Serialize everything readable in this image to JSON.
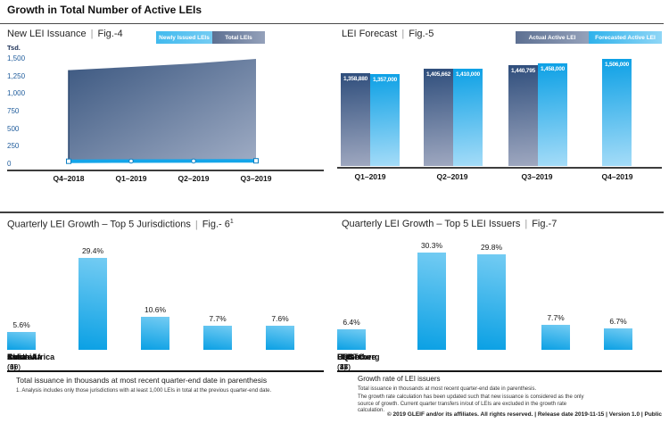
{
  "page": {
    "title": "Growth in Total Number of Active LEIs",
    "sep": "|",
    "footer": "© 2019 GLEIF and/or its affiliates. All rights reserved.  |  Release date 2019-11-15  |  Version 1.0  |  Public"
  },
  "colors": {
    "accent_blue": "#0ca0e4",
    "light_blue": "#5bc5f2",
    "slate_blue": "#3d5983",
    "slate_light": "#9ba8c2",
    "axis_label_blue": "#1f5c9c"
  },
  "fig4": {
    "title": "New LEI Issuance",
    "fig": "Fig.-4",
    "unit": "Tsd.",
    "legend": [
      "Newly Issued LEIs",
      "Total LEIs"
    ],
    "yticks": [
      "1,500",
      "1,250",
      "1,000",
      "750",
      "500",
      "250",
      "0"
    ],
    "xticks": [
      "Q4–2018",
      "Q1–2019",
      "Q2–2019",
      "Q3–2019"
    ]
  },
  "fig5": {
    "title": "LEI Forecast",
    "fig": "Fig.-5",
    "legend": [
      "Actual Active LEI",
      "Forecasted Active LEI"
    ],
    "xticks": [
      "Q1–2019",
      "Q2–2019",
      "Q3–2019",
      "Q4–2019"
    ],
    "pairs": [
      {
        "actual": "1,358,880",
        "forecast": "1,357,000"
      },
      {
        "actual": "1,405,662",
        "forecast": "1,410,000"
      },
      {
        "actual": "1,440,795",
        "forecast": "1,458,000"
      },
      {
        "forecast": "1,506,000"
      }
    ]
  },
  "fig6": {
    "title": "Quarterly LEI Growth – Top 5 Jurisdictions",
    "fig": "Fig.- 6",
    "sup": "1",
    "bars": [
      {
        "pct": "29.4%",
        "name": "China",
        "count": "(6)"
      },
      {
        "pct": "10.6%",
        "name": "India",
        "count": "(30)"
      },
      {
        "pct": "7.7%",
        "name": "Australia",
        "count": "(16)"
      },
      {
        "pct": "7.6%",
        "name": "South Africa",
        "count": "(1)"
      },
      {
        "pct": "5.6%",
        "name": "Estonia",
        "count": "(6)"
      }
    ],
    "note": "Total issuance in thousands at most recent quarter-end date in parenthesis",
    "footnote": "1. Analysis includes only those jurisdictions with at least 1,000 LEIs in total at the previous quarter-end date."
  },
  "fig7": {
    "title": "Quarterly LEI Growth – Top 5 LEI Issuers",
    "fig": "Fig.-7",
    "bars": [
      {
        "pct": "30.3%",
        "name": "CFSTC",
        "count": "(7)"
      },
      {
        "pct": "29.8%",
        "name": "Ubisecure",
        "count": "(17)"
      },
      {
        "pct": "7.7%",
        "name": "LEIL",
        "count": "(23)"
      },
      {
        "pct": "6.7%",
        "name": "EQS",
        "count": "(45)"
      },
      {
        "pct": "6.4%",
        "name": "Bloomberg",
        "count": "(84)"
      }
    ],
    "heading": "Growth rate of LEI issuers",
    "note1": "Total issuance in thousands at most recent quarter-end date in parenthesis.",
    "note2": "The growth rate calculation has been updated such that new issuance is considered as the only source of growth. Current quarter transfers in/out of LEIs are excluded in the growth rate calculation."
  },
  "chart_data": [
    {
      "type": "area",
      "title": "New LEI Issuance",
      "ylabel": "Tsd.",
      "ylim": [
        0,
        1500
      ],
      "yticks": [
        0,
        250,
        500,
        750,
        1000,
        1250,
        1500
      ],
      "x": [
        "Q4–2018",
        "Q1–2019",
        "Q2–2019",
        "Q3–2019"
      ],
      "series": [
        {
          "name": "Total LEIs",
          "values": [
            1340,
            1385,
            1435,
            1500
          ]
        },
        {
          "name": "Newly Issued LEIs",
          "values": [
            42,
            44,
            46,
            48
          ]
        }
      ],
      "legend_position": "top-right",
      "grid": false
    },
    {
      "type": "bar",
      "title": "LEI Forecast",
      "categories": [
        "Q1–2019",
        "Q2–2019",
        "Q3–2019",
        "Q4–2019"
      ],
      "series": [
        {
          "name": "Actual Active LEI",
          "values": [
            1358880,
            1405662,
            1440795,
            null
          ]
        },
        {
          "name": "Forecasted Active LEI",
          "values": [
            1357000,
            1410000,
            1458000,
            1506000
          ]
        }
      ],
      "data_labels": true,
      "grid": false
    },
    {
      "type": "bar",
      "title": "Quarterly LEI Growth – Top 5 Jurisdictions",
      "categories": [
        "China",
        "India",
        "Australia",
        "South Africa",
        "Estonia"
      ],
      "values": [
        29.4,
        10.6,
        7.7,
        7.6,
        5.6
      ],
      "issuance_thousands": [
        6,
        30,
        16,
        1,
        6
      ],
      "ylabel": "Quarterly growth %",
      "grid": false
    },
    {
      "type": "bar",
      "title": "Quarterly LEI Growth – Top 5 LEI Issuers",
      "categories": [
        "CFSTC",
        "Ubisecure",
        "LEIL",
        "EQS",
        "Bloomberg"
      ],
      "values": [
        30.3,
        29.8,
        7.7,
        6.7,
        6.4
      ],
      "issuance_thousands": [
        7,
        17,
        23,
        45,
        84
      ],
      "ylabel": "Quarterly growth %",
      "grid": false
    }
  ]
}
